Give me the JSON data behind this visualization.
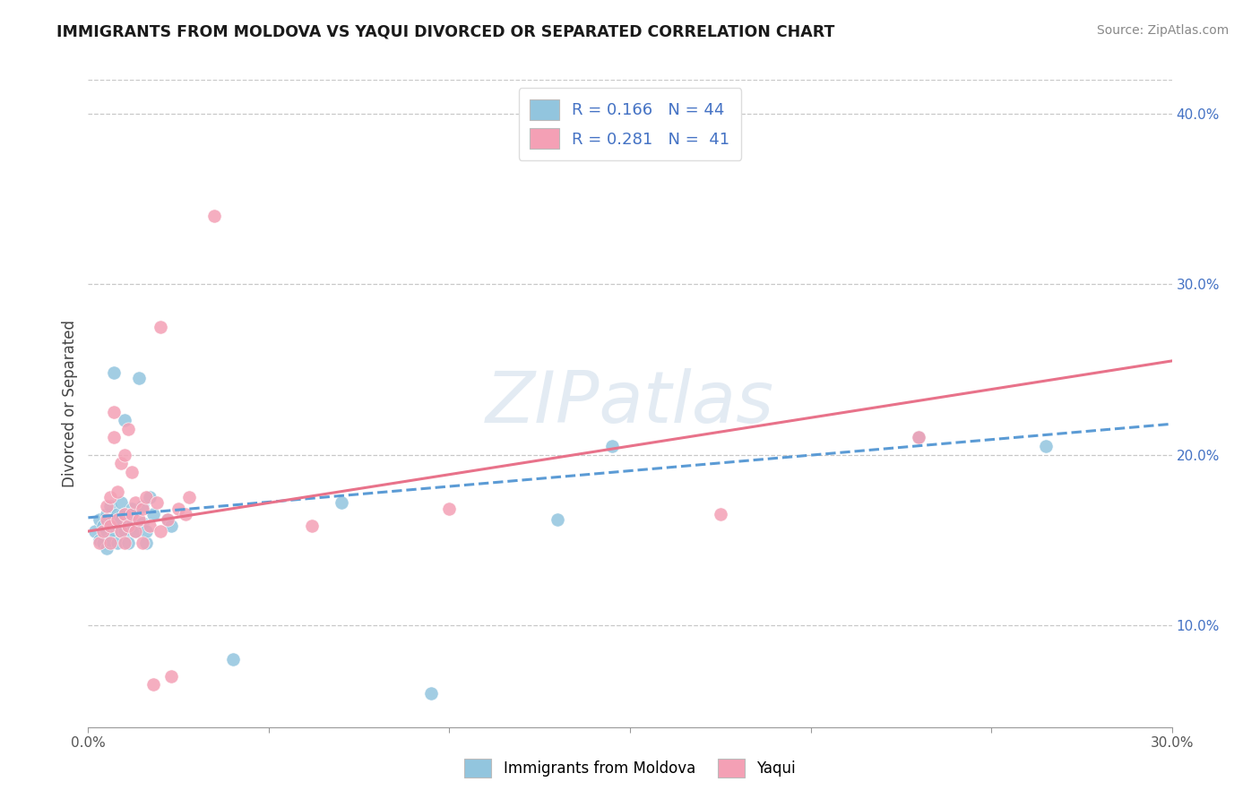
{
  "title": "IMMIGRANTS FROM MOLDOVA VS YAQUI DIVORCED OR SEPARATED CORRELATION CHART",
  "source": "Source: ZipAtlas.com",
  "watermark": "ZIPatlas",
  "ylabel": "Divorced or Separated",
  "xlim": [
    0.0,
    0.3
  ],
  "ylim": [
    0.04,
    0.42
  ],
  "xticks": [
    0.0,
    0.05,
    0.1,
    0.15,
    0.2,
    0.25,
    0.3
  ],
  "yticks": [
    0.1,
    0.2,
    0.3,
    0.4
  ],
  "ytick_labels": [
    "10.0%",
    "20.0%",
    "30.0%",
    "40.0%"
  ],
  "xtick_labels": [
    "0.0%",
    "",
    "",
    "",
    "",
    "",
    "30.0%"
  ],
  "blue_color": "#92c5de",
  "pink_color": "#f4a0b5",
  "blue_line_color": "#5b9bd5",
  "pink_line_color": "#e8728a",
  "blue_scatter": [
    [
      0.002,
      0.155
    ],
    [
      0.003,
      0.15
    ],
    [
      0.003,
      0.162
    ],
    [
      0.004,
      0.148
    ],
    [
      0.004,
      0.158
    ],
    [
      0.005,
      0.145
    ],
    [
      0.005,
      0.155
    ],
    [
      0.005,
      0.165
    ],
    [
      0.006,
      0.15
    ],
    [
      0.006,
      0.16
    ],
    [
      0.006,
      0.17
    ],
    [
      0.007,
      0.155
    ],
    [
      0.007,
      0.162
    ],
    [
      0.007,
      0.248
    ],
    [
      0.008,
      0.148
    ],
    [
      0.008,
      0.158
    ],
    [
      0.008,
      0.165
    ],
    [
      0.009,
      0.155
    ],
    [
      0.009,
      0.162
    ],
    [
      0.009,
      0.172
    ],
    [
      0.01,
      0.155
    ],
    [
      0.01,
      0.165
    ],
    [
      0.01,
      0.22
    ],
    [
      0.011,
      0.148
    ],
    [
      0.011,
      0.162
    ],
    [
      0.012,
      0.158
    ],
    [
      0.012,
      0.168
    ],
    [
      0.013,
      0.155
    ],
    [
      0.014,
      0.245
    ],
    [
      0.015,
      0.16
    ],
    [
      0.015,
      0.17
    ],
    [
      0.016,
      0.148
    ],
    [
      0.016,
      0.155
    ],
    [
      0.017,
      0.175
    ],
    [
      0.018,
      0.165
    ],
    [
      0.022,
      0.162
    ],
    [
      0.023,
      0.158
    ],
    [
      0.04,
      0.08
    ],
    [
      0.07,
      0.172
    ],
    [
      0.095,
      0.06
    ],
    [
      0.13,
      0.162
    ],
    [
      0.145,
      0.205
    ],
    [
      0.23,
      0.21
    ],
    [
      0.265,
      0.205
    ]
  ],
  "pink_scatter": [
    [
      0.003,
      0.148
    ],
    [
      0.004,
      0.155
    ],
    [
      0.005,
      0.162
    ],
    [
      0.005,
      0.17
    ],
    [
      0.006,
      0.148
    ],
    [
      0.006,
      0.158
    ],
    [
      0.006,
      0.175
    ],
    [
      0.007,
      0.21
    ],
    [
      0.007,
      0.225
    ],
    [
      0.008,
      0.162
    ],
    [
      0.008,
      0.178
    ],
    [
      0.009,
      0.155
    ],
    [
      0.009,
      0.195
    ],
    [
      0.01,
      0.148
    ],
    [
      0.01,
      0.165
    ],
    [
      0.01,
      0.2
    ],
    [
      0.011,
      0.158
    ],
    [
      0.011,
      0.215
    ],
    [
      0.012,
      0.165
    ],
    [
      0.012,
      0.19
    ],
    [
      0.013,
      0.155
    ],
    [
      0.013,
      0.172
    ],
    [
      0.014,
      0.162
    ],
    [
      0.015,
      0.148
    ],
    [
      0.015,
      0.168
    ],
    [
      0.016,
      0.175
    ],
    [
      0.017,
      0.158
    ],
    [
      0.018,
      0.065
    ],
    [
      0.019,
      0.172
    ],
    [
      0.02,
      0.275
    ],
    [
      0.02,
      0.155
    ],
    [
      0.022,
      0.162
    ],
    [
      0.023,
      0.07
    ],
    [
      0.025,
      0.168
    ],
    [
      0.027,
      0.165
    ],
    [
      0.028,
      0.175
    ],
    [
      0.035,
      0.34
    ],
    [
      0.062,
      0.158
    ],
    [
      0.1,
      0.168
    ],
    [
      0.175,
      0.165
    ],
    [
      0.23,
      0.21
    ]
  ],
  "blue_trend_x": [
    0.0,
    0.3
  ],
  "blue_trend_y": [
    0.163,
    0.218
  ],
  "pink_trend_x": [
    0.0,
    0.3
  ],
  "pink_trend_y": [
    0.155,
    0.255
  ],
  "grid_color": "#c8c8c8",
  "background_color": "#ffffff"
}
